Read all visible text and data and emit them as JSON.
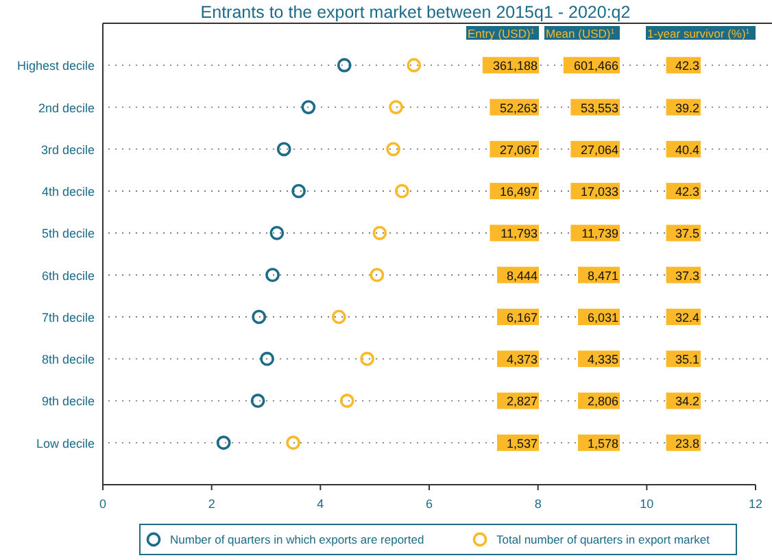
{
  "chart_data": {
    "type": "scatter",
    "title": "Entrants to the export market between 2015q1 - 2020:q2",
    "orientation": "horizontal",
    "categories": [
      "Highest decile",
      "2nd decile",
      "3rd decile",
      "4th decile",
      "5th decile",
      "6th decile",
      "7th decile",
      "8th decile",
      "9th decile",
      "Low decile"
    ],
    "series": [
      {
        "name": "Number of quarters in which exports are reported",
        "color": "#1c6b87",
        "values": [
          4.44,
          3.78,
          3.33,
          3.6,
          3.2,
          3.12,
          2.87,
          3.02,
          2.85,
          2.22
        ]
      },
      {
        "name": "Total number of quarters in export market",
        "color": "#fbb829",
        "values": [
          5.72,
          5.39,
          5.34,
          5.5,
          5.09,
          5.04,
          4.34,
          4.86,
          4.49,
          3.5
        ]
      }
    ],
    "xlim": [
      0,
      12
    ],
    "xticks": [
      0,
      2,
      4,
      6,
      8,
      10,
      12
    ],
    "grid": "y",
    "line_style": "dotted",
    "marker": "circle",
    "legend": "bottom",
    "annotations": [
      "Entry (USD)$^{1}$",
      "Mean (USD)$^{1}$",
      "1-year survivor (%)$^{1}$",
      "361,188",
      "601,466",
      "42.3",
      "52,263",
      "53,553",
      "39.2",
      "27,067",
      "27,064",
      "40.4",
      "16,497",
      "17,033",
      "42.3",
      "11,793",
      "11,739",
      "37.5",
      "8,444",
      "8,471",
      "37.3",
      "6,167",
      "6,031",
      "32.4",
      "4,373",
      "4,335",
      "35.1",
      "2,827",
      "2,806",
      "34.2",
      "1,537",
      "1,578",
      "23.8"
    ]
  }
}
